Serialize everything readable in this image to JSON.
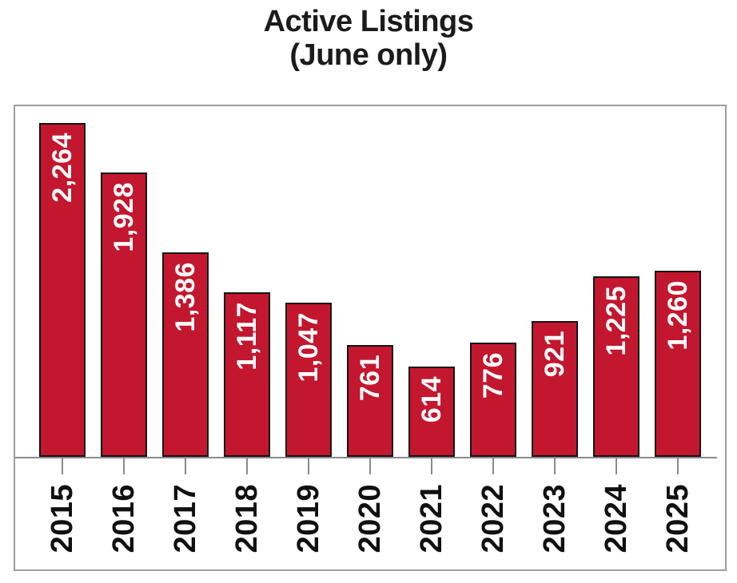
{
  "title": {
    "line1": "Active Listings",
    "line2": "(June only)"
  },
  "chart_data": {
    "type": "bar",
    "title": "Active Listings (June only)",
    "categories": [
      "2015",
      "2016",
      "2017",
      "2018",
      "2019",
      "2020",
      "2021",
      "2022",
      "2023",
      "2024",
      "2025"
    ],
    "values": [
      2264,
      1928,
      1386,
      1117,
      1047,
      761,
      614,
      776,
      921,
      1225,
      1260
    ],
    "value_labels": [
      "2,264",
      "1,928",
      "1,386",
      "1,117",
      "1,047",
      "761",
      "614",
      "776",
      "921",
      "1,225",
      "1,260"
    ],
    "xlabel": "",
    "ylabel": "",
    "ylim": [
      0,
      2400
    ],
    "grid": false,
    "legend": false,
    "data_label_rotation": -90,
    "category_label_rotation": -90,
    "colors": {
      "bar_fill": "#C3172F",
      "bar_border": "#141414",
      "value_label_text": "#FFFFFF",
      "category_label_text": "#101010",
      "title_text": "#1B1B1B",
      "frame_border": "#9E9E9E",
      "axis_line": "#8A8A8A",
      "tick": "#8A8A8A",
      "background": "#FFFFFF"
    }
  }
}
